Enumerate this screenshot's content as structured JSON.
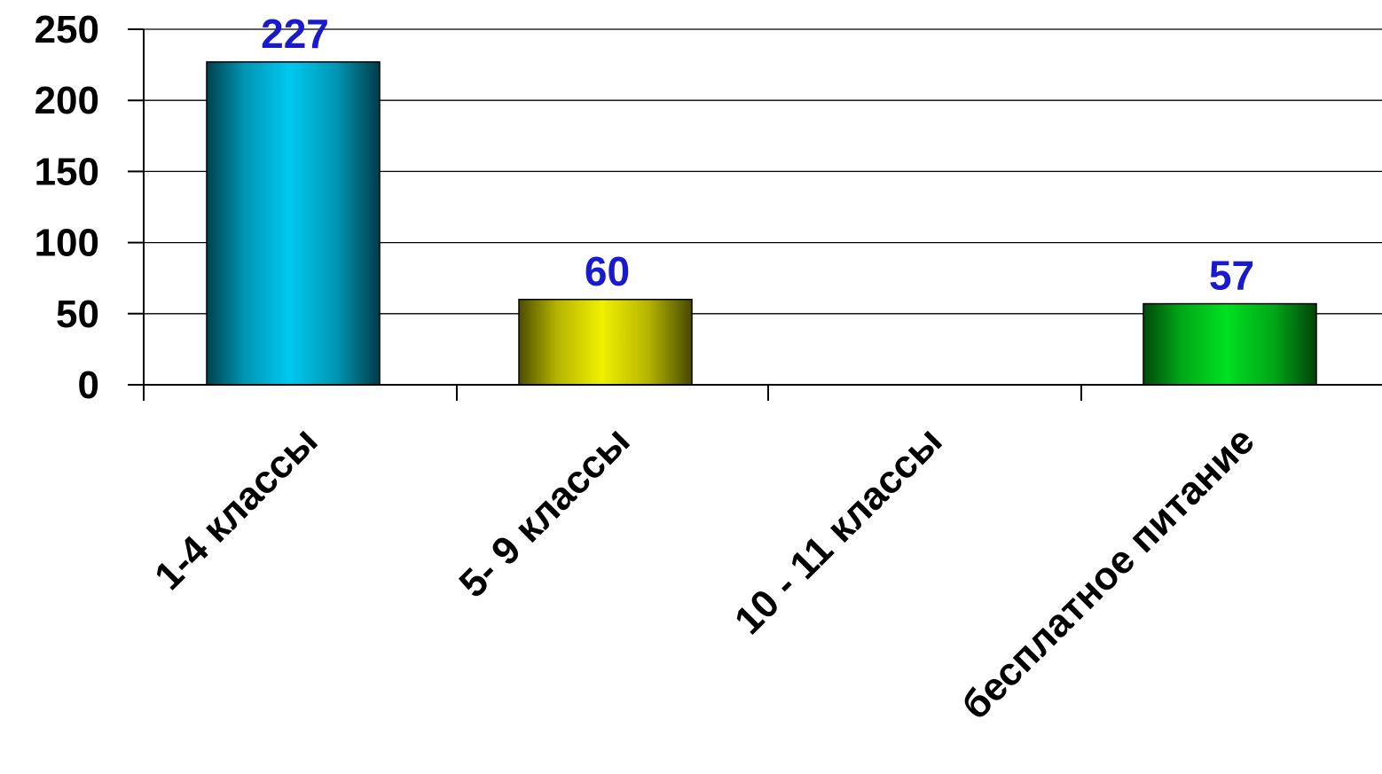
{
  "chart_data": {
    "type": "bar",
    "categories": [
      "1-4 классы",
      "5- 9 классы",
      "10 - 11 классы",
      "бесплатное питание"
    ],
    "values": [
      227,
      60,
      0,
      57
    ],
    "data_labels": [
      "227",
      "60",
      "",
      "57"
    ],
    "ylim": [
      0,
      250
    ],
    "yticks": [
      0,
      50,
      100,
      150,
      200,
      250
    ],
    "ytick_labels": [
      "0",
      "50",
      "100",
      "150",
      "200",
      "250"
    ],
    "grid": true,
    "legend": "none",
    "title": "",
    "xlabel": "",
    "ylabel": "",
    "colors": [
      "#00c8f0",
      "#f0f000",
      "#00c8f0",
      "#00e020"
    ],
    "data_label_color": "#1a1acd"
  }
}
